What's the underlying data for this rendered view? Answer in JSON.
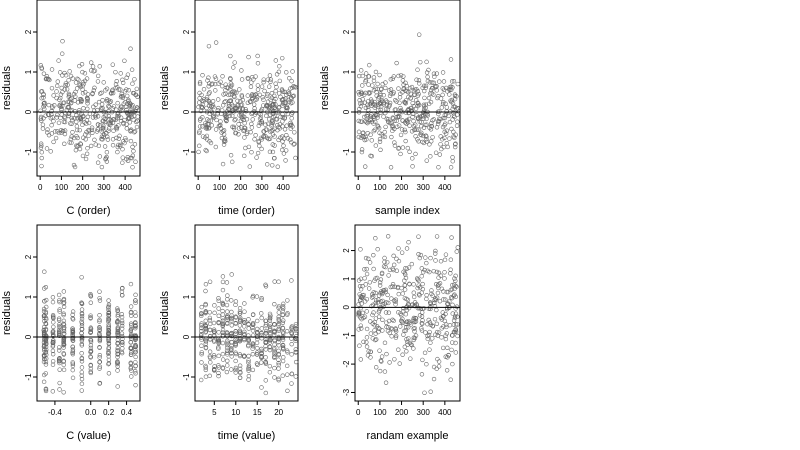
{
  "chart_data": [
    {
      "type": "scatter",
      "xlabel": "C (order)",
      "ylabel": "residuals",
      "xlim": [
        -15,
        470
      ],
      "ylim": [
        -1.6,
        2.8
      ],
      "xticks": [
        0,
        100,
        200,
        300,
        400
      ],
      "xtick_labels": [
        "0",
        "100",
        "200",
        "300",
        "400"
      ],
      "yticks": [
        -1,
        0,
        1,
        2
      ],
      "ytick_labels": [
        "-1",
        "0",
        "1",
        "2"
      ],
      "hline": 0,
      "n_points": 460,
      "x_domain": [
        1,
        460
      ],
      "y_stats": {
        "mean": 0.0,
        "sd": 0.55,
        "min": -1.4,
        "max": 2.75
      },
      "pattern": "order"
    },
    {
      "type": "scatter",
      "xlabel": "time (order)",
      "ylabel": "residuals",
      "xlim": [
        -15,
        470
      ],
      "ylim": [
        -1.6,
        2.8
      ],
      "xticks": [
        0,
        100,
        200,
        300,
        400
      ],
      "xtick_labels": [
        "0",
        "100",
        "200",
        "300",
        "400"
      ],
      "yticks": [
        -1,
        0,
        1,
        2
      ],
      "ytick_labels": [
        "-1",
        "0",
        "1",
        "2"
      ],
      "hline": 0,
      "n_points": 460,
      "x_domain": [
        1,
        460
      ],
      "y_stats": {
        "mean": 0.0,
        "sd": 0.55,
        "min": -1.4,
        "max": 2.75
      },
      "pattern": "order"
    },
    {
      "type": "scatter",
      "xlabel": "sample index",
      "ylabel": "residuals",
      "xlim": [
        -15,
        470
      ],
      "ylim": [
        -1.6,
        2.8
      ],
      "xticks": [
        0,
        100,
        200,
        300,
        400
      ],
      "xtick_labels": [
        "0",
        "100",
        "200",
        "300",
        "400"
      ],
      "yticks": [
        -1,
        0,
        1,
        2
      ],
      "ytick_labels": [
        "-1",
        "0",
        "1",
        "2"
      ],
      "hline": 0,
      "n_points": 460,
      "x_domain": [
        1,
        460
      ],
      "y_stats": {
        "mean": 0.0,
        "sd": 0.55,
        "min": -1.4,
        "max": 2.75
      },
      "pattern": "order"
    },
    {
      "type": "scatter",
      "xlabel": "C (value)",
      "ylabel": "residuals",
      "xlim": [
        -0.6,
        0.55
      ],
      "ylim": [
        -1.6,
        2.8
      ],
      "xticks": [
        -0.4,
        0.0,
        0.2,
        0.4
      ],
      "xtick_labels": [
        "-0.4",
        "0.0",
        "0.2",
        "0.4"
      ],
      "yticks": [
        -1,
        0,
        1,
        2
      ],
      "ytick_labels": [
        "-1",
        "0",
        "1",
        "2"
      ],
      "hline": 0,
      "n_points": 460,
      "x_clusters": [
        -0.52,
        -0.5,
        -0.42,
        -0.35,
        -0.3,
        -0.2,
        -0.1,
        0.0,
        0.1,
        0.2,
        0.3,
        0.35,
        0.45,
        0.5
      ],
      "y_stats": {
        "mean": 0.0,
        "sd": 0.55,
        "min": -1.4,
        "max": 2.75
      },
      "pattern": "clusters"
    },
    {
      "type": "scatter",
      "xlabel": "time (value)",
      "ylabel": "residuals",
      "xlim": [
        0.5,
        24.5
      ],
      "ylim": [
        -1.6,
        2.8
      ],
      "xticks": [
        5,
        10,
        15,
        20
      ],
      "xtick_labels": [
        "5",
        "10",
        "15",
        "20"
      ],
      "yticks": [
        -1,
        0,
        1,
        2
      ],
      "ytick_labels": [
        "-1",
        "0",
        "1",
        "2"
      ],
      "hline": 0,
      "n_points": 460,
      "x_clusters": [
        2,
        3,
        4,
        5,
        6,
        7,
        8,
        9,
        10,
        11,
        12,
        13,
        14,
        15,
        16,
        17,
        18,
        19,
        20,
        21,
        22,
        23,
        24
      ],
      "y_stats": {
        "mean": 0.0,
        "sd": 0.55,
        "min": -1.4,
        "max": 2.75
      },
      "pattern": "clusters"
    },
    {
      "type": "scatter",
      "xlabel": "randam example",
      "ylabel": "residuals",
      "xlim": [
        -15,
        470
      ],
      "ylim": [
        -3.3,
        2.9
      ],
      "xticks": [
        0,
        100,
        200,
        300,
        400
      ],
      "xtick_labels": [
        "0",
        "100",
        "200",
        "300",
        "400"
      ],
      "yticks": [
        -3,
        -2,
        -1,
        0,
        1,
        2
      ],
      "ytick_labels": [
        "-3",
        "-2",
        "-1",
        "0",
        "1",
        "2"
      ],
      "hline": 0,
      "n_points": 460,
      "x_domain": [
        1,
        460
      ],
      "y_stats": {
        "mean": 0.0,
        "sd": 1.0,
        "min": -3.1,
        "max": 2.6
      },
      "pattern": "order"
    }
  ]
}
